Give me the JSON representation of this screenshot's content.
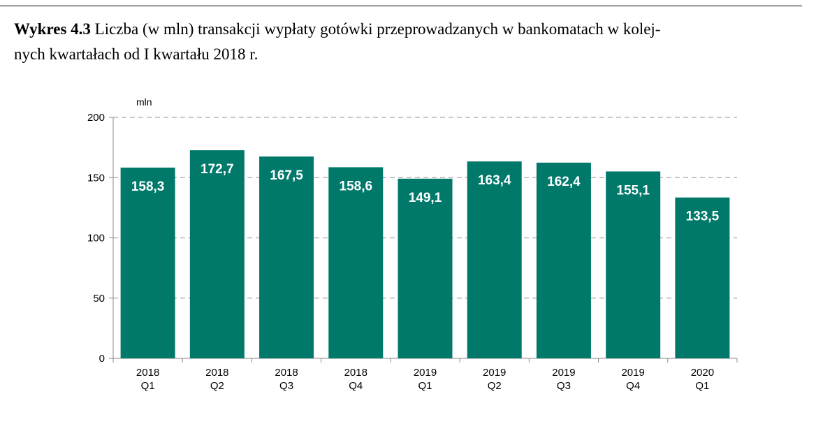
{
  "caption": {
    "label": "Wykres 4.3",
    "line1": "Liczba (w mln) transakcji wypłaty gotówki przeprowadzanych w bankomatach w kolej-",
    "line2": "nych kwartałach od I kwartału 2018 r."
  },
  "chart_data": {
    "type": "bar",
    "title": "",
    "xlabel": "",
    "ylabel": "mln",
    "categories": [
      [
        "2018",
        "Q1"
      ],
      [
        "2018",
        "Q2"
      ],
      [
        "2018",
        "Q3"
      ],
      [
        "2018",
        "Q4"
      ],
      [
        "2019",
        "Q1"
      ],
      [
        "2019",
        "Q2"
      ],
      [
        "2019",
        "Q3"
      ],
      [
        "2019",
        "Q4"
      ],
      [
        "2020",
        "Q1"
      ]
    ],
    "values": [
      158.3,
      172.7,
      167.5,
      158.6,
      149.1,
      163.4,
      162.4,
      155.1,
      133.5
    ],
    "value_labels": [
      "158,3",
      "172,7",
      "167,5",
      "158,6",
      "149,1",
      "163,4",
      "162,4",
      "155,1",
      "133,5"
    ],
    "ylim": [
      0,
      200
    ],
    "yticks": [
      0,
      50,
      100,
      150,
      200
    ],
    "grid": "dashed horizontal",
    "legend": "none",
    "bar_color": "#00796b",
    "grid_color": "#b7b7b7"
  }
}
